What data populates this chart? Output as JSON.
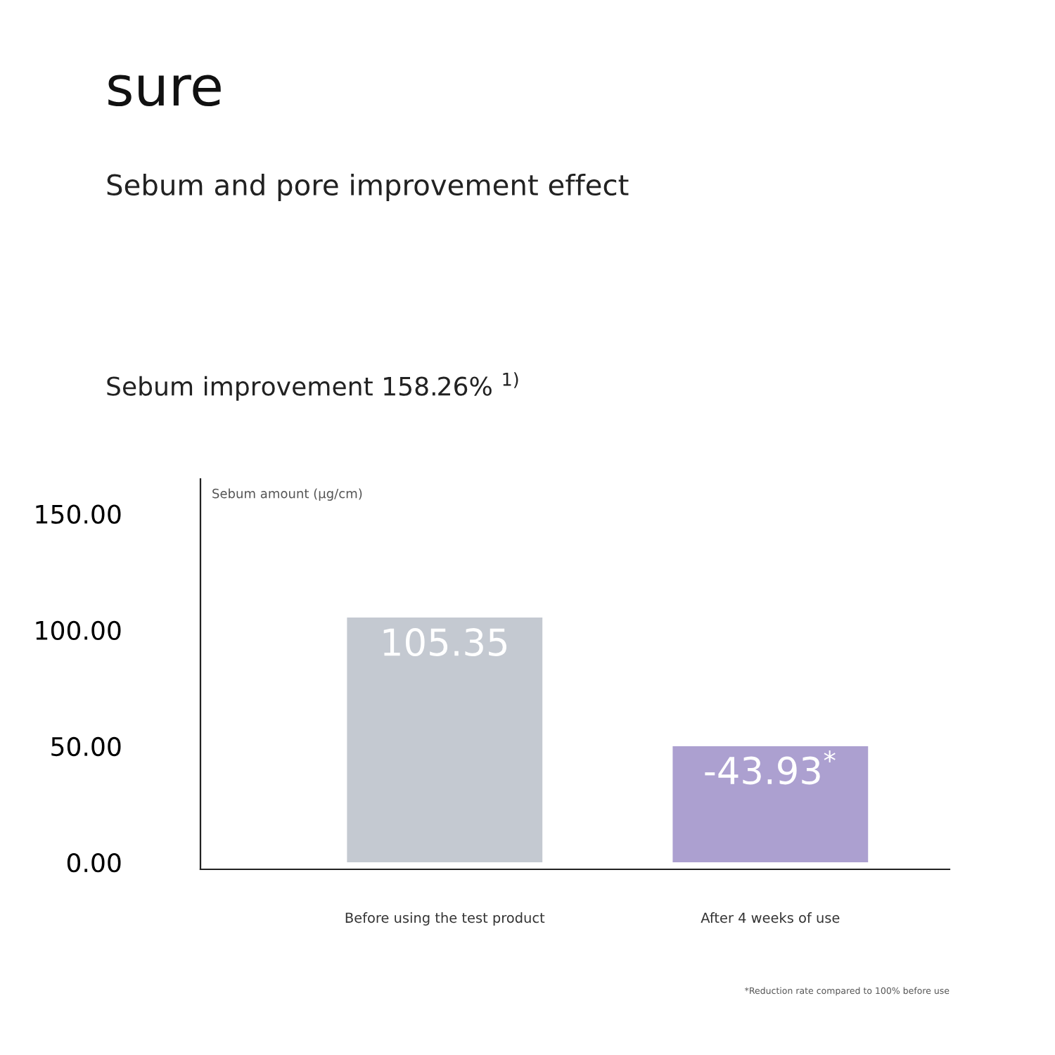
{
  "chart_data": {
    "type": "bar",
    "title": "Sebum and pore improvement effect",
    "subtitle": "Sebum improvement 158.26% $^{1)}$",
    "ylabel": "Sebum amount (µg/cm)",
    "annotations": [
      "sure",
      "*Reduction rate compared to 100% before use",
      "-43.93$^{*}$"
    ],
    "categories": [
      "Before using the test product",
      "After 4 weeks of use"
    ],
    "values": [
      105.35,
      50
    ],
    "colors": [
      "#c4c9d1",
      "#aca0d0"
    ],
    "value_labels": [
      "105.35",
      null
    ],
    "ylim": [
      -3,
      165
    ],
    "yticks": [
      {
        "value": 0,
        "label": "0.00"
      },
      {
        "value": 50,
        "label": "50.00"
      },
      {
        "value": 100,
        "label": "100.00"
      },
      {
        "value": 150,
        "label": "150.00"
      }
    ],
    "grid": false,
    "legend": false
  }
}
